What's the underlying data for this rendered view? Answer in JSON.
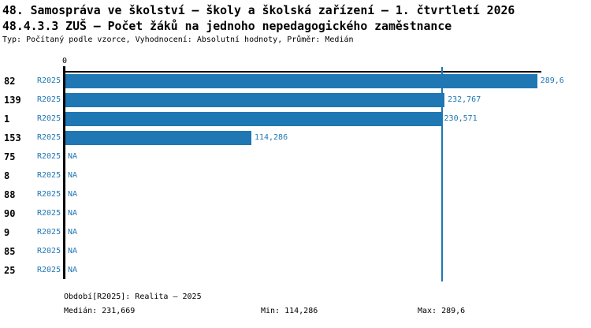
{
  "colors": {
    "bar_blue": "#1f77b4",
    "text_blue": "#1f77b4",
    "axis_black": "#000000",
    "background": "#ffffff"
  },
  "header": {
    "title_line1": "48. Samospráva ve školství – školy a školská zařízení – 1. čtvrtletí 2026",
    "title_line2": "48.4.3.3 ZUŠ – Počet žáků na jednoho nepedagogického zaměstnance",
    "subtitle": "Typ: Počítaný podle vzorce, Vyhodnocení: Absolutní hodnoty, Průměr: Medián"
  },
  "axis": {
    "zero_label": "0"
  },
  "chart_data": {
    "type": "bar",
    "orientation": "horizontal",
    "title": "48.4.3.3 ZUŠ – Počet žáků na jednoho nepedagogického zaměstnance",
    "xlabel": "",
    "ylabel": "",
    "xlim": [
      0,
      290
    ],
    "x_axis_ticks": [
      "0"
    ],
    "grid": false,
    "legend_position": "none",
    "median_value": 231.669,
    "median_value_label": "231,669",
    "na_label": "NA",
    "categories": [
      "82",
      "139",
      "1",
      "153",
      "75",
      "8",
      "88",
      "90",
      "9",
      "85",
      "25"
    ],
    "series": [
      {
        "name": "R2025",
        "values": [
          289.6,
          232.767,
          230.571,
          114.286,
          null,
          null,
          null,
          null,
          null,
          null,
          null
        ],
        "value_labels": [
          "289,6",
          "232,767",
          "230,571",
          "114,286",
          "NA",
          "NA",
          "NA",
          "NA",
          "NA",
          "NA",
          "NA"
        ]
      }
    ]
  },
  "footer": {
    "period_info": "Období[R2025]: Realita – 2025",
    "median_label": "Medián: 231,669",
    "min_label": "Min: 114,286",
    "max_label": "Max: 289,6"
  }
}
